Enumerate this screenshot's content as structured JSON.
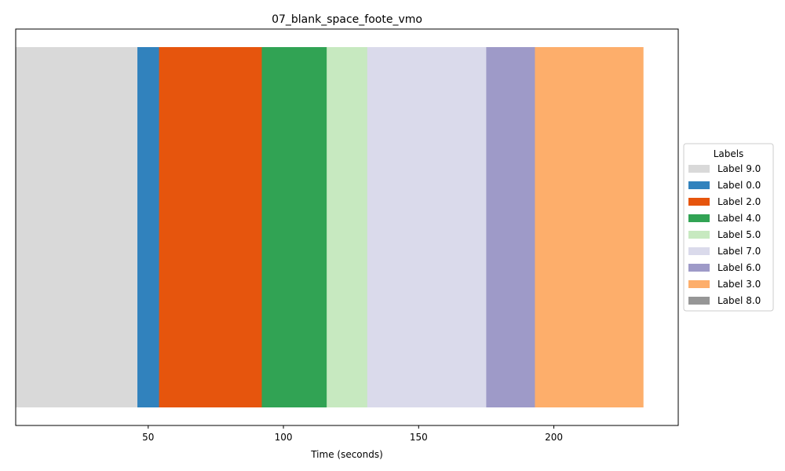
{
  "chart_data": {
    "type": "bar",
    "orientation": "horizontal-timeline",
    "title": "07_blank_space_foote_vmo",
    "xlabel": "Time (seconds)",
    "ylabel": "",
    "xlim": [
      1,
      246
    ],
    "x_ticks": [
      50,
      100,
      150,
      200
    ],
    "grid": false,
    "legend": {
      "title": "Labels",
      "placement": "center-right-outside"
    },
    "segments": [
      {
        "label": "Label 9.0",
        "start": 1,
        "end": 46,
        "color": "#d9d9d9"
      },
      {
        "label": "Label 0.0",
        "start": 46,
        "end": 54,
        "color": "#3182bd"
      },
      {
        "label": "Label 2.0",
        "start": 54,
        "end": 92,
        "color": "#e6550d"
      },
      {
        "label": "Label 4.0",
        "start": 92,
        "end": 116,
        "color": "#31a354"
      },
      {
        "label": "Label 5.0",
        "start": 116,
        "end": 131,
        "color": "#c7e9c0"
      },
      {
        "label": "Label 7.0",
        "start": 131,
        "end": 175,
        "color": "#dadaeb"
      },
      {
        "label": "Label 6.0",
        "start": 175,
        "end": 193,
        "color": "#9e9ac8"
      },
      {
        "label": "Label 3.0",
        "start": 193,
        "end": 233,
        "color": "#fdae6b"
      }
    ],
    "legend_entries": [
      {
        "label": "Label 9.0",
        "color": "#d9d9d9"
      },
      {
        "label": "Label 0.0",
        "color": "#3182bd"
      },
      {
        "label": "Label 2.0",
        "color": "#e6550d"
      },
      {
        "label": "Label 4.0",
        "color": "#31a354"
      },
      {
        "label": "Label 5.0",
        "color": "#c7e9c0"
      },
      {
        "label": "Label 7.0",
        "color": "#dadaeb"
      },
      {
        "label": "Label 6.0",
        "color": "#9e9ac8"
      },
      {
        "label": "Label 3.0",
        "color": "#fdae6b"
      },
      {
        "label": "Label 8.0",
        "color": "#969696"
      }
    ]
  }
}
